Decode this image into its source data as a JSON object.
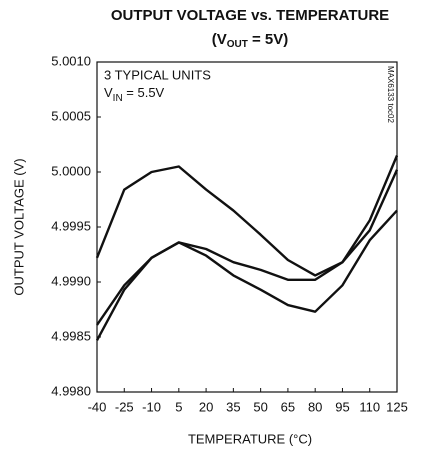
{
  "chart_data": {
    "type": "line",
    "title": "OUTPUT VOLTAGE vs. TEMPERATURE",
    "subtitle_parts": [
      "(V",
      "OUT",
      " = 5V)"
    ],
    "annotation": "3 TYPICAL UNITS",
    "annotation_vin_parts": [
      "V",
      "IN",
      " = 5.5V"
    ],
    "figure_id": "MAX6133 toc02",
    "x_label": "TEMPERATURE (°C)",
    "y_label": "OUTPUT VOLTAGE (V)",
    "x": [
      -40,
      -25,
      -10,
      5,
      20,
      35,
      50,
      65,
      80,
      95,
      110,
      125
    ],
    "series": [
      {
        "color": "#111111",
        "values": [
          4.99922,
          4.99984,
          5.0,
          5.00005,
          4.99984,
          4.99965,
          4.99943,
          4.9992,
          4.99906,
          4.99918,
          4.99956,
          5.00015
        ]
      },
      {
        "color": "#111111",
        "values": [
          4.99861,
          4.99897,
          4.99922,
          4.99936,
          4.9993,
          4.99918,
          4.99911,
          4.99902,
          4.99902,
          4.99918,
          4.99947,
          5.00002
        ]
      },
      {
        "color": "#111111",
        "values": [
          4.99847,
          4.99893,
          4.99922,
          4.99936,
          4.99924,
          4.99906,
          4.99893,
          4.99879,
          4.99873,
          4.99897,
          4.99938,
          4.99965
        ]
      }
    ],
    "xlim": [
      -40,
      125
    ],
    "xticks": [
      -40,
      -25,
      -10,
      5,
      20,
      35,
      50,
      65,
      80,
      95,
      110,
      125
    ],
    "ylim": [
      4.998,
      5.001
    ],
    "yticks": [
      {
        "value": 4.998,
        "label": "4.9980"
      },
      {
        "value": 4.9985,
        "label": "4.9985"
      },
      {
        "value": 4.999,
        "label": "4.9990"
      },
      {
        "value": 4.9995,
        "label": "4.9995"
      },
      {
        "value": 5.0,
        "label": "5.0000"
      },
      {
        "value": 5.0005,
        "label": "5.0005"
      },
      {
        "value": 5.001,
        "label": "5.0010"
      }
    ],
    "grid": false
  }
}
